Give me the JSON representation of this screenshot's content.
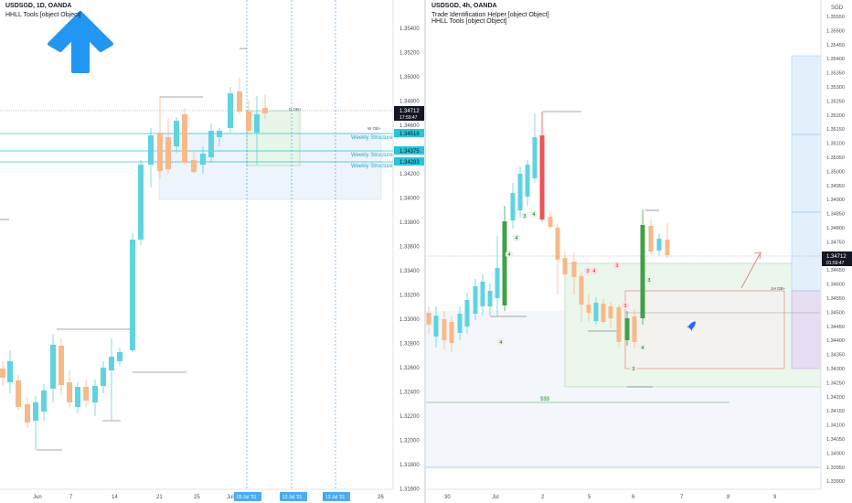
{
  "left_chart": {
    "title": "USDSGD, 1D, OANDA",
    "indicator": "HHLL Tools [object Object]",
    "price_labels": [
      "1.35400",
      "1.35200",
      "1.35000",
      "1.34800",
      "1.34600",
      "1.34400",
      "1.34200",
      "1.34000",
      "1.33800",
      "1.33600",
      "1.33400",
      "1.33200",
      "1.33000",
      "1.32800",
      "1.32600",
      "1.32400",
      "1.32200",
      "1.32000",
      "1.31800",
      "1.31600"
    ],
    "time_labels": [
      "Jun",
      "7",
      "14",
      "21",
      "25",
      "Jul",
      "19",
      "26"
    ],
    "time_highlights": [
      "05 Jul '21",
      "12 Jul '21",
      "19 Jul '21"
    ],
    "current_price": "1.34712",
    "countdown": "17:59:47",
    "level_labels": [
      "1.34518",
      "1.34375",
      "1.34283"
    ],
    "structure_labels": [
      "Weekly Structure",
      "Weekly Structure",
      "Weekly Structure"
    ],
    "w_label": "W OB+",
    "d_label": "D OB+",
    "arrow": "up-arrow-icon"
  },
  "right_chart": {
    "title": "USDSGD, 4h, OANDA",
    "indicator1": "Trade Identification Helper [object Object]",
    "indicator2": "HHLL Tools [object Object]",
    "unit": "SGD",
    "price_labels": [
      "1.35550",
      "1.35500",
      "1.35450",
      "1.35400",
      "1.35350",
      "1.35300",
      "1.35250",
      "1.35200",
      "1.35150",
      "1.35100",
      "1.35050",
      "1.35000",
      "1.34950",
      "1.34900",
      "1.34850",
      "1.34800",
      "1.34750",
      "1.34700",
      "1.34650",
      "1.34600",
      "1.34550",
      "1.34500",
      "1.34450",
      "1.34400",
      "1.34350",
      "1.34300",
      "1.34250",
      "1.34200",
      "1.34150",
      "1.34100",
      "1.34050",
      "1.34000",
      "1.33950",
      "1.33900"
    ],
    "time_labels": [
      "30",
      "Jul",
      "2",
      "5",
      "6",
      "7",
      "8",
      "9"
    ],
    "current_price": "1.34712",
    "countdown": "01:59:47",
    "markers": [
      "3",
      "4",
      "4",
      "4",
      "4",
      "3",
      "4",
      "3",
      "3",
      "4",
      "3",
      "3"
    ],
    "dollar_label": "$$$",
    "h_label": "1H OB+",
    "rocket": "rocket-icon"
  },
  "colors": {
    "bull": "#5fd3e0",
    "bear": "#f7b98a",
    "strong_bull": "#43a047",
    "strong_bear": "#ef5350",
    "level": "#26c6da",
    "box_green": "#e8f5e9",
    "box_blue": "#eaf2fb"
  }
}
